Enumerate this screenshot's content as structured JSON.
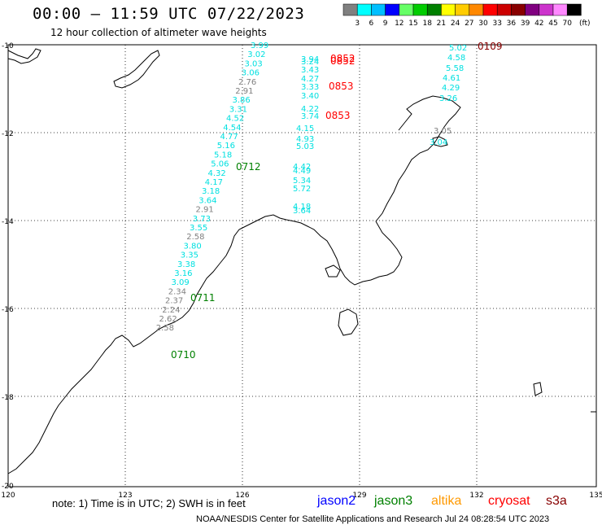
{
  "header": {
    "title": "00:00 – 11:59 UTC 07/22/2023",
    "subtitle": "12 hour collection of altimeter wave heights"
  },
  "legend": {
    "unit": "(ft)",
    "bins": [
      {
        "label": "3",
        "color": "#808080"
      },
      {
        "label": "6",
        "color": "#00ffff"
      },
      {
        "label": "9",
        "color": "#00bfff"
      },
      {
        "label": "12",
        "color": "#0000ff"
      },
      {
        "label": "15",
        "color": "#66ff66"
      },
      {
        "label": "18",
        "color": "#00cc00"
      },
      {
        "label": "21",
        "color": "#008000"
      },
      {
        "label": "24",
        "color": "#ffff00"
      },
      {
        "label": "27",
        "color": "#ffcc00"
      },
      {
        "label": "30",
        "color": "#ff8800"
      },
      {
        "label": "33",
        "color": "#ff0000"
      },
      {
        "label": "36",
        "color": "#cc0000"
      },
      {
        "label": "39",
        "color": "#880000"
      },
      {
        "label": "42",
        "color": "#800080"
      },
      {
        "label": "45",
        "color": "#cc33cc"
      },
      {
        "label": "70",
        "color": "#ff88ff"
      },
      {
        "label": "",
        "color": "#000000"
      }
    ]
  },
  "axes": {
    "lat_labels": [
      "-10",
      "-12",
      "-14",
      "-16",
      "-18",
      "-20"
    ],
    "lon_labels": [
      "120",
      "123",
      "126",
      "129",
      "132",
      "135"
    ]
  },
  "tracks": {
    "track_a": [
      "3.99",
      "3.02",
      "3.03",
      "3.06",
      "2.76",
      "2.91",
      "3.86",
      "3.31",
      "4.52",
      "4.54",
      "4.77",
      "5.16",
      "5.18",
      "5.06",
      "4.32",
      "4.17",
      "3.18",
      "3.64",
      "2.91",
      "3.73",
      "3.55",
      "2.58",
      "3.80",
      "3.35",
      "3.38",
      "3.16",
      "3.09",
      "2.34",
      "2.37",
      "2.24",
      "2.62",
      "2.58"
    ],
    "track_b": [
      "3.94",
      "3.24",
      "3.43",
      "4.27",
      "3.33",
      "3.40",
      "4.22",
      "3.74",
      "4.15",
      "4.93",
      "5.03",
      "4.42",
      "4.49",
      "5.34",
      "5.72",
      "4.18",
      "3.64"
    ],
    "track_c": [
      "5.02",
      "4.58",
      "5.58",
      "4.61",
      "4.29",
      "3.26",
      "3.05",
      "3.04"
    ]
  },
  "time_labels": [
    "0852",
    "0852",
    "0853",
    "0853",
    "0109",
    "0712",
    "0711",
    "0710"
  ],
  "colors": {
    "cyan": "#00e0e0",
    "gray": "#808080",
    "green": "#008000",
    "red": "#ff0000",
    "darkred": "#880000"
  },
  "note": "note: 1) Time is in UTC; 2) SWH is in feet",
  "satellites": [
    {
      "name": "jason2",
      "color": "#0000ff"
    },
    {
      "name": "jason3",
      "color": "#008000"
    },
    {
      "name": "altika",
      "color": "#ff9900"
    },
    {
      "name": "cryosat",
      "color": "#ff0000"
    },
    {
      "name": "s3a",
      "color": "#880000"
    }
  ],
  "footer": "NOAA/NESDIS Center for Satellite Applications and Research    Jul 24 08:28:54 UTC 2023"
}
